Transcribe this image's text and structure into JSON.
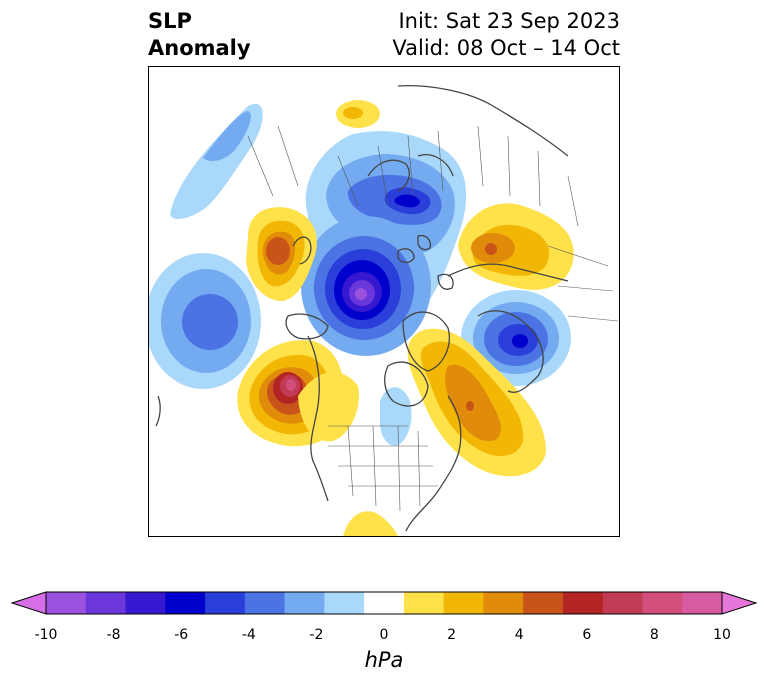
{
  "title": {
    "left_line1": "SLP",
    "left_line2": "Anomaly",
    "right_line1": "Init: Sat 23 Sep 2023",
    "right_line2": "Valid: 08 Oct – 14 Oct"
  },
  "colorbar": {
    "units": "hPa",
    "ticks": [
      "-10",
      "-8",
      "-6",
      "-4",
      "-2",
      "0",
      "2",
      "4",
      "6",
      "8",
      "10"
    ],
    "colors": [
      "#d66ee6",
      "#9a52de",
      "#6b37db",
      "#3718d1",
      "#0000cc",
      "#2a3fd9",
      "#4b73e3",
      "#74aaf0",
      "#aad8fb",
      "#ffffff",
      "#ffe14a",
      "#f2b705",
      "#e08b0a",
      "#c9541a",
      "#b32424",
      "#c23b55",
      "#d24e7d",
      "#d65ba0",
      "#e677da"
    ]
  },
  "map": {
    "variable": "sea level pressure anomaly",
    "projection": "north polar stereographic"
  }
}
